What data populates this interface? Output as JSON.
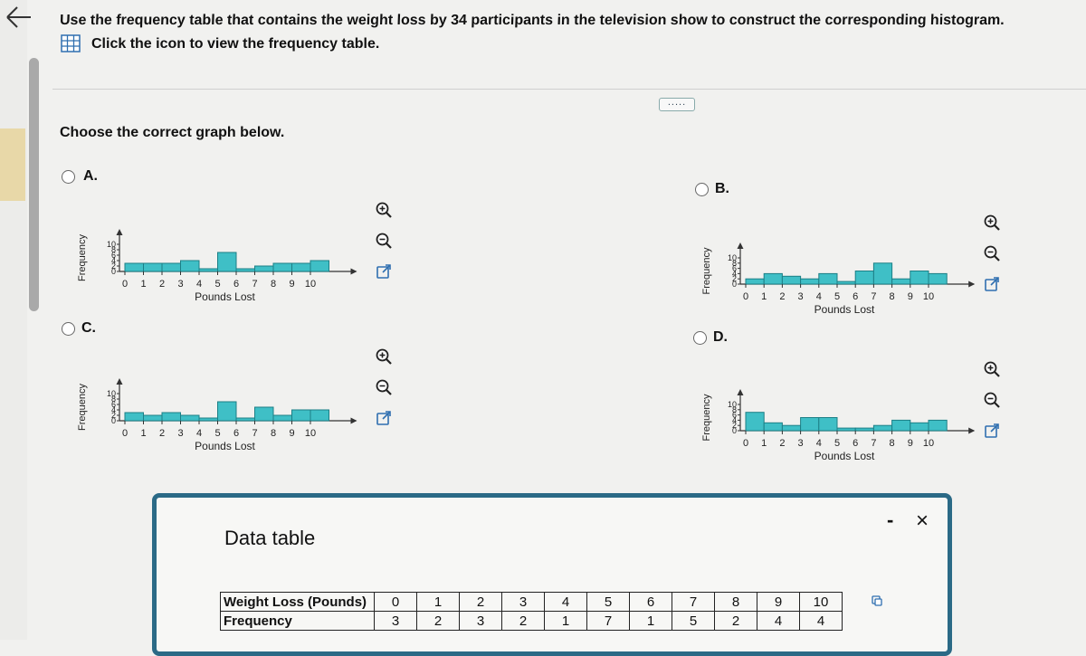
{
  "question": {
    "text": "Use the frequency table that contains the weight loss by 34 participants in the television show to construct the corresponding histogram.",
    "icon_link_text": "Click the icon to view the frequency table.",
    "prompt": "Choose the correct graph below.",
    "more_button": "....."
  },
  "options": [
    {
      "id": "A",
      "label": "A."
    },
    {
      "id": "B",
      "label": "B."
    },
    {
      "id": "C",
      "label": "C."
    },
    {
      "id": "D",
      "label": "D."
    }
  ],
  "chart_common": {
    "xlabel": "Pounds Lost",
    "ylabel": "Frequency",
    "x_ticks": [
      "0",
      "1",
      "2",
      "3",
      "4",
      "5",
      "6",
      "7",
      "8",
      "9",
      "10"
    ],
    "y_ticks": [
      "0",
      "2",
      "4",
      "6",
      "8",
      "10"
    ],
    "bar_color": "#3fbfc6",
    "bar_stroke": "#1c7f86"
  },
  "chart_data": [
    {
      "option": "A",
      "type": "bar",
      "categories": [
        "0",
        "1",
        "2",
        "3",
        "4",
        "5",
        "6",
        "7",
        "8",
        "9",
        "10"
      ],
      "values": [
        3,
        3,
        3,
        4,
        1,
        7,
        1,
        2,
        3,
        3,
        4
      ],
      "xlabel": "Pounds Lost",
      "ylabel": "Frequency",
      "ylim": [
        0,
        10
      ]
    },
    {
      "option": "B",
      "type": "bar",
      "categories": [
        "0",
        "1",
        "2",
        "3",
        "4",
        "5",
        "6",
        "7",
        "8",
        "9",
        "10"
      ],
      "values": [
        2,
        4,
        3,
        2,
        4,
        1,
        5,
        8,
        2,
        5,
        4
      ],
      "xlabel": "Pounds Lost",
      "ylabel": "Frequency",
      "ylim": [
        0,
        10
      ]
    },
    {
      "option": "C",
      "type": "bar",
      "categories": [
        "0",
        "1",
        "2",
        "3",
        "4",
        "5",
        "6",
        "7",
        "8",
        "9",
        "10"
      ],
      "values": [
        3,
        2,
        3,
        2,
        1,
        7,
        1,
        5,
        2,
        4,
        4
      ],
      "xlabel": "Pounds Lost",
      "ylabel": "Frequency",
      "ylim": [
        0,
        10
      ]
    },
    {
      "option": "D",
      "type": "bar",
      "categories": [
        "0",
        "1",
        "2",
        "3",
        "4",
        "5",
        "6",
        "7",
        "8",
        "9",
        "10"
      ],
      "values": [
        7,
        3,
        2,
        5,
        5,
        1,
        1,
        2,
        4,
        3,
        4
      ],
      "xlabel": "Pounds Lost",
      "ylabel": "Frequency",
      "ylim": [
        0,
        10
      ]
    }
  ],
  "dialog": {
    "title": "Data table",
    "minimize": "-",
    "close": "×",
    "table": {
      "row_headers": [
        "Weight Loss (Pounds)",
        "Frequency"
      ],
      "weights": [
        "0",
        "1",
        "2",
        "3",
        "4",
        "5",
        "6",
        "7",
        "8",
        "9",
        "10"
      ],
      "frequencies": [
        "3",
        "2",
        "3",
        "2",
        "1",
        "7",
        "1",
        "5",
        "2",
        "4",
        "4"
      ]
    }
  }
}
